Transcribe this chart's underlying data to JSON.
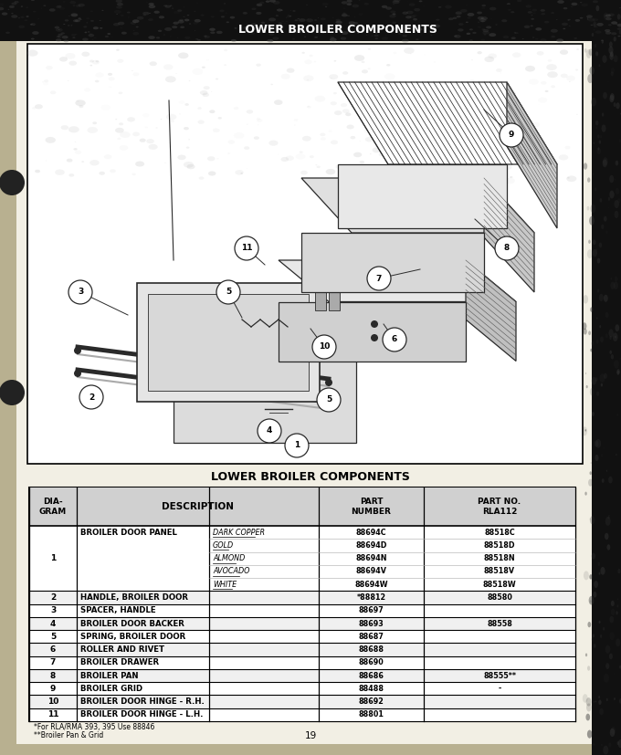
{
  "title_top": "LOWER BROILER COMPONENTS",
  "title_table": "LOWER BROILER COMPONENTS",
  "page_number": "19",
  "bg_color": "#b8b090",
  "paper_color": "#f2efe4",
  "footnote1": "*For RLA/RMA 393, 395 Use 88846",
  "footnote2": "**Broiler Pan & Grid",
  "row_groups": [
    {
      "slots": 5,
      "diag": "1",
      "desc": "BROILER DOOR PANEL",
      "colors": [
        "DARK COPPER",
        "GOLD",
        "ALMOND",
        "AVOCADO",
        "WHITE"
      ],
      "pn": [
        "88694C",
        "88694D",
        "88694N",
        "88694V",
        "88694W"
      ],
      "rla": [
        "88518C",
        "88518D",
        "88518N",
        "88518V",
        "88518W"
      ]
    },
    {
      "slots": 1,
      "diag": "2",
      "desc": "HANDLE, BROILER DOOR",
      "colors": [],
      "pn": [
        "*88812"
      ],
      "rla": [
        "88580"
      ]
    },
    {
      "slots": 1,
      "diag": "3",
      "desc": "SPACER, HANDLE",
      "colors": [],
      "pn": [
        "88697"
      ],
      "rla": [
        ""
      ]
    },
    {
      "slots": 1,
      "diag": "4",
      "desc": "BROILER DOOR BACKER",
      "colors": [],
      "pn": [
        "88693"
      ],
      "rla": [
        "88558"
      ]
    },
    {
      "slots": 1,
      "diag": "5",
      "desc": "SPRING, BROILER DOOR",
      "colors": [],
      "pn": [
        "88687"
      ],
      "rla": [
        ""
      ]
    },
    {
      "slots": 1,
      "diag": "6",
      "desc": "ROLLER AND RIVET",
      "colors": [],
      "pn": [
        "88688"
      ],
      "rla": [
        ""
      ]
    },
    {
      "slots": 1,
      "diag": "7",
      "desc": "BROILER DRAWER",
      "colors": [],
      "pn": [
        "88690"
      ],
      "rla": [
        ""
      ]
    },
    {
      "slots": 1,
      "diag": "8",
      "desc": "BROILER PAN",
      "colors": [],
      "pn": [
        "88686"
      ],
      "rla": [
        "88555**"
      ]
    },
    {
      "slots": 1,
      "diag": "9",
      "desc": "BROILER GRID",
      "colors": [],
      "pn": [
        "88488"
      ],
      "rla": [
        "-"
      ]
    },
    {
      "slots": 1,
      "diag": "10",
      "desc": "BROILER DOOR HINGE - R.H.",
      "colors": [],
      "pn": [
        "88692"
      ],
      "rla": [
        ""
      ]
    },
    {
      "slots": 1,
      "diag": "11",
      "desc": "BROILER DOOR HINGE - L.H.",
      "colors": [],
      "pn": [
        "88801"
      ],
      "rla": [
        ""
      ]
    }
  ]
}
